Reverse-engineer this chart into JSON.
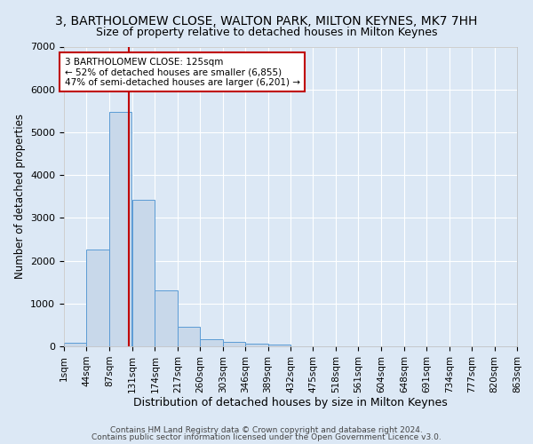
{
  "title": "3, BARTHOLOMEW CLOSE, WALTON PARK, MILTON KEYNES, MK7 7HH",
  "subtitle": "Size of property relative to detached houses in Milton Keynes",
  "xlabel": "Distribution of detached houses by size in Milton Keynes",
  "ylabel": "Number of detached properties",
  "footer_line1": "Contains HM Land Registry data © Crown copyright and database right 2024.",
  "footer_line2": "Contains public sector information licensed under the Open Government Licence v3.0.",
  "bar_left_edges": [
    1,
    44,
    87,
    131,
    174,
    217,
    260,
    303,
    346,
    389,
    432,
    475,
    518,
    561,
    604,
    648,
    691,
    734,
    777,
    820
  ],
  "bar_heights": [
    75,
    2270,
    5480,
    3430,
    1310,
    460,
    160,
    105,
    70,
    45,
    0,
    0,
    0,
    0,
    0,
    0,
    0,
    0,
    0,
    0
  ],
  "bin_width": 43,
  "bar_color": "#c8d8ea",
  "bar_edgecolor": "#5b9bd5",
  "tick_labels": [
    "1sqm",
    "44sqm",
    "87sqm",
    "131sqm",
    "174sqm",
    "217sqm",
    "260sqm",
    "303sqm",
    "346sqm",
    "389sqm",
    "432sqm",
    "475sqm",
    "518sqm",
    "561sqm",
    "604sqm",
    "648sqm",
    "691sqm",
    "734sqm",
    "777sqm",
    "820sqm",
    "863sqm"
  ],
  "ylim": [
    0,
    7000
  ],
  "yticks": [
    0,
    1000,
    2000,
    3000,
    4000,
    5000,
    6000,
    7000
  ],
  "vline_x": 125,
  "vline_color": "#c00000",
  "annotation_text": "3 BARTHOLOMEW CLOSE: 125sqm\n← 52% of detached houses are smaller (6,855)\n47% of semi-detached houses are larger (6,201) →",
  "annotation_box_color": "white",
  "annotation_edgecolor": "#c00000",
  "bg_color": "#dce8f5",
  "axes_bg_color": "#dce8f5",
  "grid_color": "white",
  "title_fontsize": 10,
  "subtitle_fontsize": 9,
  "xlabel_fontsize": 9,
  "ylabel_fontsize": 8.5,
  "tick_fontsize": 7.5,
  "footer_fontsize": 6.5
}
